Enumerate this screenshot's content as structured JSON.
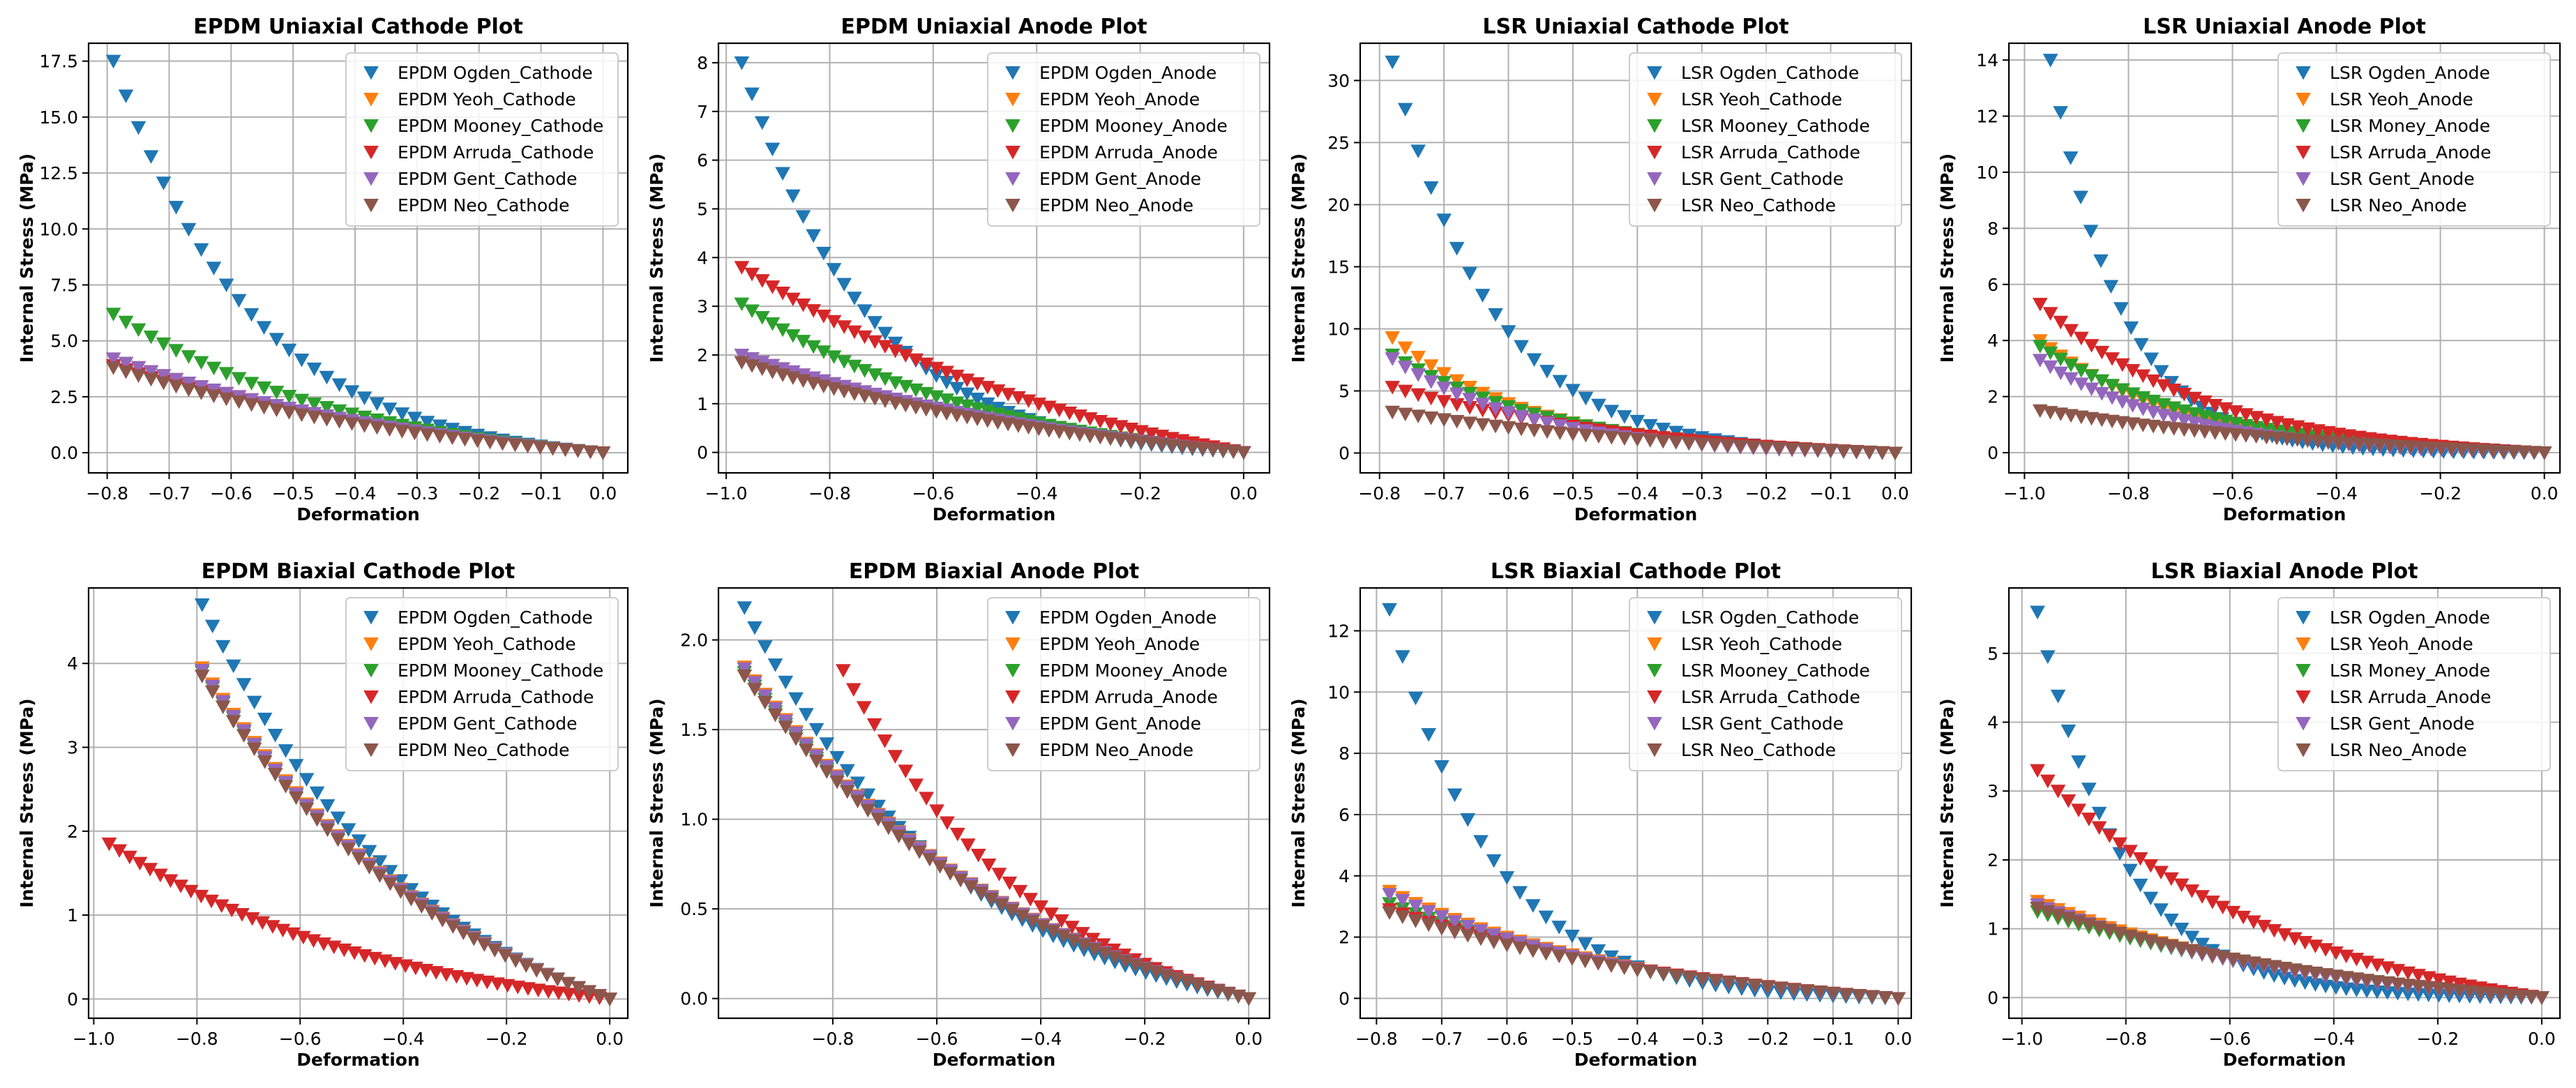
{
  "figure": {
    "rows": 2,
    "cols": 4
  },
  "style": {
    "series_colors": [
      "#1f77b4",
      "#ff7f0e",
      "#2ca02c",
      "#d62728",
      "#9467bd",
      "#8c564b"
    ],
    "grid_color": "#b0b0b0",
    "marker": "down-triangle"
  },
  "chart_data": [
    {
      "type": "scatter",
      "title": "EPDM Uniaxial Cathode Plot",
      "xlabel": "Deformation",
      "ylabel": "Internal Stress (MPa)",
      "xlim": [
        -0.83,
        0.04
      ],
      "ylim": [
        -0.9,
        18.3
      ],
      "xticks": [
        -0.8,
        -0.7,
        -0.6,
        -0.5,
        -0.4,
        -0.3,
        -0.2,
        -0.1,
        0.0
      ],
      "xtick_labels": [
        "−0.8",
        "−0.7",
        "−0.6",
        "−0.5",
        "−0.4",
        "−0.3",
        "−0.2",
        "−0.1",
        "0.0"
      ],
      "yticks": [
        0,
        2.5,
        5,
        7.5,
        10,
        12.5,
        15,
        17.5
      ],
      "ytick_labels": [
        "0.0",
        "2.5",
        "5.0",
        "7.5",
        "10.0",
        "12.5",
        "15.0",
        "17.5"
      ],
      "grid": true,
      "legend": "top-right",
      "series": [
        {
          "name": "EPDM Ogden_Cathode",
          "shape": "exp",
          "x0": -0.79,
          "y0": 17.5,
          "k": 3.5,
          "n": 40
        },
        {
          "name": "EPDM Yeoh_Cathode",
          "shape": "exp",
          "x0": -0.79,
          "y0": 4.2,
          "k": 1.4,
          "n": 40
        },
        {
          "name": "EPDM Mooney_Cathode",
          "shape": "exp",
          "x0": -0.79,
          "y0": 6.2,
          "k": 2.0,
          "n": 40
        },
        {
          "name": "EPDM Arruda_Cathode",
          "shape": "exp",
          "x0": -0.79,
          "y0": 3.9,
          "k": 1.4,
          "n": 40
        },
        {
          "name": "EPDM Gent_Cathode",
          "shape": "exp",
          "x0": -0.79,
          "y0": 4.2,
          "k": 1.4,
          "n": 40
        },
        {
          "name": "EPDM Neo_Cathode",
          "shape": "exp",
          "x0": -0.79,
          "y0": 3.8,
          "k": 1.4,
          "n": 40
        }
      ]
    },
    {
      "type": "scatter",
      "title": "EPDM Uniaxial Anode Plot",
      "xlabel": "Deformation",
      "ylabel": "Internal Stress (MPa)",
      "xlim": [
        -1.015,
        0.05
      ],
      "ylim": [
        -0.42,
        8.4
      ],
      "xticks": [
        -1.0,
        -0.8,
        -0.6,
        -0.4,
        -0.2,
        0.0
      ],
      "xtick_labels": [
        "−1.0",
        "−0.8",
        "−0.6",
        "−0.4",
        "−0.2",
        "0.0"
      ],
      "yticks": [
        0,
        1,
        2,
        3,
        4,
        5,
        6,
        7,
        8
      ],
      "ytick_labels": [
        "0",
        "1",
        "2",
        "3",
        "4",
        "5",
        "6",
        "7",
        "8"
      ],
      "grid": true,
      "legend": "top-right",
      "series": [
        {
          "name": "EPDM Ogden_Anode",
          "shape": "exp",
          "x0": -0.97,
          "y0": 8.0,
          "k": 4.0,
          "n": 50
        },
        {
          "name": "EPDM Yeoh_Anode",
          "shape": "exp",
          "x0": -0.97,
          "y0": 2.0,
          "k": 1.3,
          "n": 50
        },
        {
          "name": "EPDM Mooney_Anode",
          "shape": "exp",
          "x0": -0.97,
          "y0": 3.05,
          "k": 2.0,
          "n": 50
        },
        {
          "name": "EPDM Arruda_Anode",
          "shape": "exp",
          "x0": -0.97,
          "y0": 3.8,
          "k": 1.3,
          "n": 50
        },
        {
          "name": "EPDM Gent_Anode",
          "shape": "exp",
          "x0": -0.97,
          "y0": 2.0,
          "k": 1.3,
          "n": 50
        },
        {
          "name": "EPDM Neo_Anode",
          "shape": "exp",
          "x0": -0.97,
          "y0": 1.85,
          "k": 1.3,
          "n": 50
        }
      ]
    },
    {
      "type": "scatter",
      "title": "LSR Uniaxial Cathode Plot",
      "xlabel": "Deformation",
      "ylabel": "Internal Stress (MPa)",
      "xlim": [
        -0.83,
        0.025
      ],
      "ylim": [
        -1.6,
        33.0
      ],
      "xticks": [
        -0.8,
        -0.7,
        -0.6,
        -0.5,
        -0.4,
        -0.3,
        -0.2,
        -0.1,
        0.0
      ],
      "xtick_labels": [
        "−0.8",
        "−0.7",
        "−0.6",
        "−0.5",
        "−0.4",
        "−0.3",
        "−0.2",
        "−0.1",
        "0.0"
      ],
      "yticks": [
        0,
        5,
        10,
        15,
        20,
        25,
        30
      ],
      "ytick_labels": [
        "0",
        "5",
        "10",
        "15",
        "20",
        "25",
        "30"
      ],
      "grid": true,
      "legend": "top-right",
      "series": [
        {
          "name": "LSR Ogden_Cathode",
          "shape": "exp",
          "x0": -0.78,
          "y0": 31.5,
          "k": 5.0,
          "n": 40
        },
        {
          "name": "LSR Yeoh_Cathode",
          "shape": "exp",
          "x0": -0.78,
          "y0": 9.3,
          "k": 3.5,
          "n": 40
        },
        {
          "name": "LSR Mooney_Cathode",
          "shape": "exp",
          "x0": -0.78,
          "y0": 7.9,
          "k": 3.0,
          "n": 40
        },
        {
          "name": "LSR Arruda_Cathode",
          "shape": "exp",
          "x0": -0.78,
          "y0": 5.3,
          "k": 2.0,
          "n": 40
        },
        {
          "name": "LSR Gent_Cathode",
          "shape": "exp",
          "x0": -0.78,
          "y0": 7.6,
          "k": 3.5,
          "n": 40
        },
        {
          "name": "LSR Neo_Cathode",
          "shape": "exp",
          "x0": -0.78,
          "y0": 3.3,
          "k": 1.5,
          "n": 40
        }
      ]
    },
    {
      "type": "scatter",
      "title": "LSR Uniaxial Anode Plot",
      "xlabel": "Deformation",
      "ylabel": "Internal Stress (MPa)",
      "xlim": [
        -1.03,
        0.03
      ],
      "ylim": [
        -0.72,
        14.6
      ],
      "xticks": [
        -1.0,
        -0.8,
        -0.6,
        -0.4,
        -0.2,
        0.0
      ],
      "xtick_labels": [
        "−1.0",
        "−0.8",
        "−0.6",
        "−0.4",
        "−0.2",
        "0.0"
      ],
      "yticks": [
        0,
        2,
        4,
        6,
        8,
        10,
        12,
        14
      ],
      "ytick_labels": [
        "0",
        "2",
        "4",
        "6",
        "8",
        "10",
        "12",
        "14"
      ],
      "grid": true,
      "legend": "top-right",
      "series": [
        {
          "name": "LSR Ogden_Anode",
          "shape": "exp",
          "x0": -0.95,
          "y0": 14.0,
          "k": 7.0,
          "n": 50
        },
        {
          "name": "LSR Yeoh_Anode",
          "shape": "exp",
          "x0": -0.97,
          "y0": 4.0,
          "k": 3.5,
          "n": 50
        },
        {
          "name": "LSR Money_Anode",
          "shape": "exp",
          "x0": -0.97,
          "y0": 3.8,
          "k": 3.0,
          "n": 50
        },
        {
          "name": "LSR Arruda_Anode",
          "shape": "exp",
          "x0": -0.97,
          "y0": 5.3,
          "k": 3.0,
          "n": 50
        },
        {
          "name": "LSR Gent_Anode",
          "shape": "exp",
          "x0": -0.97,
          "y0": 3.3,
          "k": 3.5,
          "n": 50
        },
        {
          "name": "LSR Neo_Anode",
          "shape": "exp",
          "x0": -0.97,
          "y0": 1.5,
          "k": 1.5,
          "n": 50
        }
      ]
    },
    {
      "type": "scatter",
      "title": "EPDM Biaxial Cathode Plot",
      "xlabel": "Deformation",
      "ylabel": "Internal Stress (MPa)",
      "xlim": [
        -1.01,
        0.035
      ],
      "ylim": [
        -0.23,
        4.9
      ],
      "xticks": [
        -1.0,
        -0.8,
        -0.6,
        -0.4,
        -0.2,
        0.0
      ],
      "xtick_labels": [
        "−1.0",
        "−0.8",
        "−0.6",
        "−0.4",
        "−0.2",
        "0.0"
      ],
      "yticks": [
        0,
        1,
        2,
        3,
        4
      ],
      "ytick_labels": [
        "0",
        "1",
        "2",
        "3",
        "4"
      ],
      "grid": true,
      "legend": "top-right",
      "series": [
        {
          "name": "EPDM Ogden_Cathode",
          "shape": "exp",
          "x0": -0.79,
          "y0": 4.7,
          "k": 1.8,
          "n": 40
        },
        {
          "name": "EPDM Yeoh_Cathode",
          "shape": "exp",
          "x0": -0.79,
          "y0": 3.95,
          "k": 1.5,
          "n": 40
        },
        {
          "name": "EPDM Mooney_Cathode",
          "shape": "exp",
          "x0": -0.79,
          "y0": 3.9,
          "k": 1.5,
          "n": 40
        },
        {
          "name": "EPDM Arruda_Cathode",
          "shape": "exp",
          "x0": -0.97,
          "y0": 1.85,
          "k": 1.8,
          "n": 50
        },
        {
          "name": "EPDM Gent_Cathode",
          "shape": "exp",
          "x0": -0.79,
          "y0": 3.92,
          "k": 1.5,
          "n": 40
        },
        {
          "name": "EPDM Neo_Cathode",
          "shape": "exp",
          "x0": -0.79,
          "y0": 3.85,
          "k": 1.5,
          "n": 40
        }
      ]
    },
    {
      "type": "scatter",
      "title": "EPDM Biaxial Anode Plot",
      "xlabel": "Deformation",
      "ylabel": "Internal Stress (MPa)",
      "xlim": [
        -1.02,
        0.04
      ],
      "ylim": [
        -0.11,
        2.29
      ],
      "xticks": [
        -0.8,
        -0.6,
        -0.4,
        -0.2,
        0.0
      ],
      "xtick_labels": [
        "−0.8",
        "−0.6",
        "−0.4",
        "−0.2",
        "0.0"
      ],
      "yticks": [
        0,
        0.5,
        1.0,
        1.5,
        2.0
      ],
      "ytick_labels": [
        "0.0",
        "0.5",
        "1.0",
        "1.5",
        "2.0"
      ],
      "grid": true,
      "legend": "top-right",
      "series": [
        {
          "name": "EPDM Ogden_Anode",
          "shape": "exp",
          "x0": -0.97,
          "y0": 2.18,
          "k": 2.3,
          "n": 50
        },
        {
          "name": "EPDM Yeoh_Anode",
          "shape": "exp",
          "x0": -0.97,
          "y0": 1.85,
          "k": 1.7,
          "n": 50
        },
        {
          "name": "EPDM Mooney_Anode",
          "shape": "exp",
          "x0": -0.97,
          "y0": 1.82,
          "k": 1.7,
          "n": 50
        },
        {
          "name": "EPDM Arruda_Anode",
          "shape": "exp",
          "x0": -0.78,
          "y0": 1.83,
          "k": 2.0,
          "n": 40
        },
        {
          "name": "EPDM Gent_Anode",
          "shape": "exp",
          "x0": -0.97,
          "y0": 1.84,
          "k": 1.7,
          "n": 50
        },
        {
          "name": "EPDM Neo_Anode",
          "shape": "exp",
          "x0": -0.97,
          "y0": 1.8,
          "k": 1.7,
          "n": 50
        }
      ]
    },
    {
      "type": "scatter",
      "title": "LSR Biaxial Cathode Plot",
      "xlabel": "Deformation",
      "ylabel": "Internal Stress (MPa)",
      "xlim": [
        -0.825,
        0.02
      ],
      "ylim": [
        -0.65,
        13.4
      ],
      "xticks": [
        -0.8,
        -0.7,
        -0.6,
        -0.5,
        -0.4,
        -0.3,
        -0.2,
        -0.1,
        0.0
      ],
      "xtick_labels": [
        "−0.8",
        "−0.7",
        "−0.6",
        "−0.5",
        "−0.4",
        "−0.3",
        "−0.2",
        "−0.1",
        "0.0"
      ],
      "yticks": [
        0,
        2,
        4,
        6,
        8,
        10,
        12
      ],
      "ytick_labels": [
        "0",
        "2",
        "4",
        "6",
        "8",
        "10",
        "12"
      ],
      "grid": true,
      "legend": "top-right",
      "series": [
        {
          "name": "LSR Ogden_Cathode",
          "shape": "exp",
          "x0": -0.78,
          "y0": 12.7,
          "k": 5.0,
          "n": 40
        },
        {
          "name": "LSR Yeoh_Cathode",
          "shape": "exp",
          "x0": -0.78,
          "y0": 3.5,
          "k": 2.0,
          "n": 40
        },
        {
          "name": "LSR Mooney_Cathode",
          "shape": "exp",
          "x0": -0.78,
          "y0": 3.1,
          "k": 1.8,
          "n": 40
        },
        {
          "name": "LSR Arruda_Cathode",
          "shape": "exp",
          "x0": -0.78,
          "y0": 2.9,
          "k": 1.5,
          "n": 40
        },
        {
          "name": "LSR Gent_Cathode",
          "shape": "exp",
          "x0": -0.78,
          "y0": 3.4,
          "k": 2.0,
          "n": 40
        },
        {
          "name": "LSR Neo_Cathode",
          "shape": "exp",
          "x0": -0.78,
          "y0": 2.8,
          "k": 1.5,
          "n": 40
        }
      ]
    },
    {
      "type": "scatter",
      "title": "LSR Biaxial Anode Plot",
      "xlabel": "Deformation",
      "ylabel": "Internal Stress (MPa)",
      "xlim": [
        -1.025,
        0.035
      ],
      "ylim": [
        -0.3,
        5.95
      ],
      "xticks": [
        -1.0,
        -0.8,
        -0.6,
        -0.4,
        -0.2,
        0.0
      ],
      "xtick_labels": [
        "−1.0",
        "−0.8",
        "−0.6",
        "−0.4",
        "−0.2",
        "0.0"
      ],
      "yticks": [
        0,
        1,
        2,
        3,
        4,
        5
      ],
      "ytick_labels": [
        "0",
        "1",
        "2",
        "3",
        "4",
        "5"
      ],
      "grid": true,
      "legend": "top-right",
      "series": [
        {
          "name": "LSR Ogden_Anode",
          "shape": "exp",
          "x0": -0.97,
          "y0": 5.6,
          "k": 6.0,
          "n": 50
        },
        {
          "name": "LSR Yeoh_Anode",
          "shape": "exp",
          "x0": -0.97,
          "y0": 1.4,
          "k": 1.8,
          "n": 50
        },
        {
          "name": "LSR Money_Anode",
          "shape": "exp",
          "x0": -0.97,
          "y0": 1.25,
          "k": 1.5,
          "n": 50
        },
        {
          "name": "LSR Arruda_Anode",
          "shape": "exp",
          "x0": -0.97,
          "y0": 3.3,
          "k": 2.0,
          "n": 50
        },
        {
          "name": "LSR Gent_Anode",
          "shape": "exp",
          "x0": -0.97,
          "y0": 1.35,
          "k": 1.8,
          "n": 50
        },
        {
          "name": "LSR Neo_Anode",
          "shape": "exp",
          "x0": -0.97,
          "y0": 1.3,
          "k": 1.5,
          "n": 50
        }
      ]
    }
  ]
}
